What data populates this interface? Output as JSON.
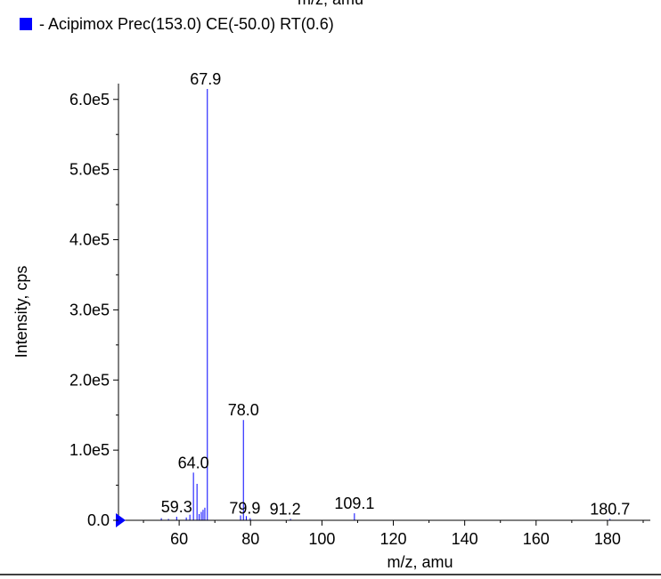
{
  "chart_data": {
    "type": "bar",
    "top_partial_label": "m/z, amu",
    "legend": {
      "text": "- Acipimox Prec(153.0) CE(-50.0) RT(0.6)",
      "color": "#0000ff"
    },
    "xlabel": "m/z, amu",
    "ylabel": "Intensity, cps",
    "xlim": [
      43,
      192
    ],
    "ylim": [
      0,
      620000
    ],
    "x_ticks": [
      {
        "value": 60,
        "label": "60"
      },
      {
        "value": 80,
        "label": "80"
      },
      {
        "value": 100,
        "label": "100"
      },
      {
        "value": 120,
        "label": "120"
      },
      {
        "value": 140,
        "label": "140"
      },
      {
        "value": 160,
        "label": "160"
      },
      {
        "value": 180,
        "label": "180"
      }
    ],
    "y_ticks": [
      {
        "value": 0,
        "label": "0.0"
      },
      {
        "value": 100000,
        "label": "1.0e5"
      },
      {
        "value": 200000,
        "label": "2.0e5"
      },
      {
        "value": 300000,
        "label": "3.0e5"
      },
      {
        "value": 400000,
        "label": "4.0e5"
      },
      {
        "value": 500000,
        "label": "5.0e5"
      },
      {
        "value": 600000,
        "label": "6.0e5"
      }
    ],
    "series_color": "#0000ff",
    "peaks": [
      {
        "x": 55.0,
        "y": 3000
      },
      {
        "x": 57.0,
        "y": 2000
      },
      {
        "x": 59.3,
        "y": 5000
      },
      {
        "x": 62.0,
        "y": 4000
      },
      {
        "x": 63.0,
        "y": 8000
      },
      {
        "x": 64.0,
        "y": 68000
      },
      {
        "x": 65.0,
        "y": 52000
      },
      {
        "x": 65.6,
        "y": 9000
      },
      {
        "x": 66.2,
        "y": 12000
      },
      {
        "x": 66.7,
        "y": 15000
      },
      {
        "x": 67.2,
        "y": 18000
      },
      {
        "x": 67.9,
        "y": 615000
      },
      {
        "x": 77.2,
        "y": 7000
      },
      {
        "x": 78.0,
        "y": 143000
      },
      {
        "x": 78.8,
        "y": 6000
      },
      {
        "x": 79.9,
        "y": 3000
      },
      {
        "x": 91.2,
        "y": 2000
      },
      {
        "x": 109.1,
        "y": 10000
      },
      {
        "x": 180.7,
        "y": 2000
      }
    ],
    "peak_labels": [
      {
        "x": 67.9,
        "y": 615000,
        "text": "67.9"
      },
      {
        "x": 78.0,
        "y": 143000,
        "text": "78.0"
      },
      {
        "x": 64.0,
        "y": 68000,
        "text": "64.0"
      },
      {
        "x": 59.3,
        "y": 5000,
        "text": "59.3"
      },
      {
        "x": 79.9,
        "y": 3000,
        "text": "79.9"
      },
      {
        "x": 91.2,
        "y": 2000,
        "text": "91.2"
      },
      {
        "x": 109.1,
        "y": 10000,
        "text": "109.1"
      },
      {
        "x": 180.7,
        "y": 2000,
        "text": "180.7"
      }
    ]
  }
}
